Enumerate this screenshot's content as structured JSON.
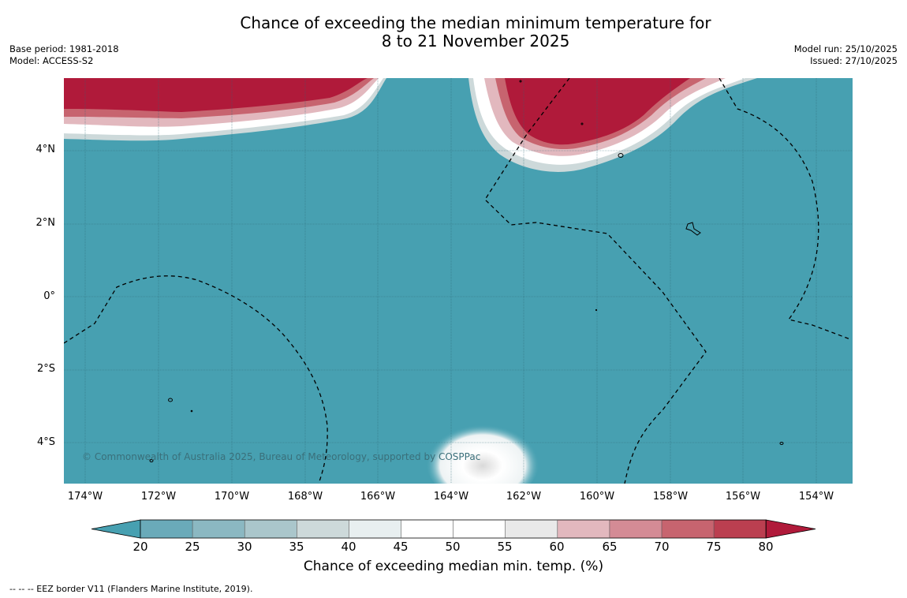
{
  "header": {
    "title_line1": "Chance of exceeding the median minimum temperature for",
    "title_line2": "8 to 21 November 2025",
    "base_period": "Base period: 1981-2018",
    "model": "Model: ACCESS-S2",
    "model_run": "Model run: 25/10/2025",
    "issued": "Issued: 27/10/2025"
  },
  "map": {
    "lat_labels": [
      "4°N",
      "2°N",
      "0°",
      "2°S",
      "4°S"
    ],
    "lon_labels": [
      "174°W",
      "172°W",
      "170°W",
      "168°W",
      "166°W",
      "164°W",
      "162°W",
      "160°W",
      "158°W",
      "156°W",
      "154°W"
    ],
    "copyright": "© Commonwealth of Australia 2025, Bureau of Meteorology, supported by COSPPac",
    "colors": {
      "ocean_low": "#47a0b1",
      "high": "#b01a3a",
      "border": "#000000"
    }
  },
  "colorbar": {
    "ticks": [
      "20",
      "25",
      "30",
      "35",
      "40",
      "45",
      "50",
      "55",
      "60",
      "65",
      "70",
      "75",
      "80"
    ],
    "colors": [
      "#47a0b1",
      "#6aaab9",
      "#8bb8c2",
      "#aac6cb",
      "#cdd9da",
      "#e8eff0",
      "#ffffff",
      "#ffffff",
      "#e9e9e9",
      "#e2b8be",
      "#d48b95",
      "#c7646f",
      "#bb3f50",
      "#b01a3a"
    ],
    "label": "Chance of exceeding median min. temp. (%)"
  },
  "footer": {
    "legend": "--  --  -- EEZ border V11 (Flanders Marine Institute, 2019)."
  }
}
